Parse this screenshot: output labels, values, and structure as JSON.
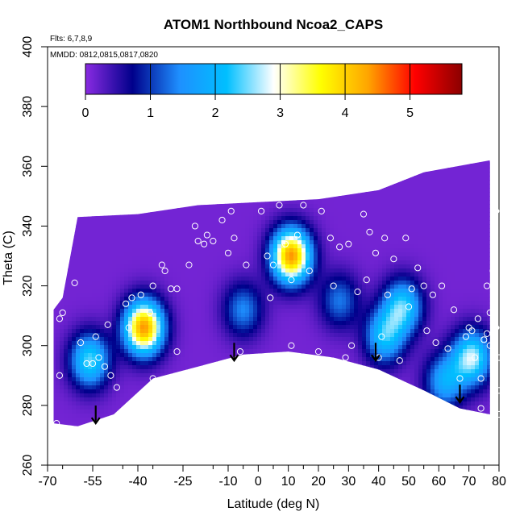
{
  "chart_data": {
    "type": "heatmap",
    "title": "ATOM1 Northbound Ncoa2_CAPS",
    "flights_label": "Flts: 6,7,8,9",
    "dates_label": "MMDD: 0812,0815,0817,0820",
    "xlabel": "Latitude (deg N)",
    "ylabel": "Theta (C)",
    "xlim": [
      -70,
      80
    ],
    "ylim": [
      260,
      400
    ],
    "x_ticks": [
      -70,
      -55,
      -40,
      -25,
      -10,
      0,
      10,
      20,
      30,
      40,
      50,
      60,
      70,
      80
    ],
    "y_ticks": [
      260,
      280,
      300,
      320,
      340,
      360,
      380,
      400
    ],
    "colorbar": {
      "range": [
        0,
        5.8
      ],
      "ticks": [
        0,
        1,
        2,
        3,
        4,
        5
      ],
      "colors": [
        "#8a2be2",
        "#00008b",
        "#1e90ff",
        "#00bfff",
        "#ffffff",
        "#ffff00",
        "#ffa500",
        "#ff0000",
        "#8b0000"
      ]
    },
    "hotspots": [
      {
        "lat": -38,
        "theta": 306,
        "value": 4.3
      },
      {
        "lat": 11,
        "theta": 330,
        "value": 4.3
      },
      {
        "lat": -56,
        "theta": 295,
        "value": 2.3
      },
      {
        "lat": 71,
        "theta": 296,
        "value": 2.6
      },
      {
        "lat": 42,
        "theta": 303,
        "value": 2.0
      },
      {
        "lat": 62,
        "theta": 288,
        "value": 1.7
      },
      {
        "lat": 48,
        "theta": 313,
        "value": 2.2
      },
      {
        "lat": -5,
        "theta": 312,
        "value": 1.3
      },
      {
        "lat": 27,
        "theta": 315,
        "value": 1.2
      }
    ],
    "coverage": {
      "top": [
        [
          -68,
          312
        ],
        [
          -65,
          316
        ],
        [
          -60,
          343
        ],
        [
          -40,
          344
        ],
        [
          -20,
          347
        ],
        [
          0,
          348
        ],
        [
          20,
          349
        ],
        [
          40,
          352
        ],
        [
          55,
          358
        ],
        [
          77,
          362
        ]
      ],
      "bottom": [
        [
          -68,
          274
        ],
        [
          -60,
          273
        ],
        [
          -48,
          277
        ],
        [
          -35,
          289
        ],
        [
          -20,
          293
        ],
        [
          -5,
          297
        ],
        [
          10,
          298
        ],
        [
          25,
          296
        ],
        [
          40,
          292
        ],
        [
          55,
          285
        ],
        [
          67,
          279
        ],
        [
          77,
          277
        ]
      ]
    },
    "arrows": [
      {
        "lat": -54,
        "theta": 274
      },
      {
        "lat": -8,
        "theta": 295
      },
      {
        "lat": 39,
        "theta": 295
      },
      {
        "lat": 67,
        "theta": 281
      }
    ],
    "samples": [
      [
        -66,
        309
      ],
      [
        -65,
        311
      ],
      [
        -66,
        290
      ],
      [
        -67,
        274
      ],
      [
        -61,
        321
      ],
      [
        -59,
        301
      ],
      [
        -57,
        294
      ],
      [
        -55,
        294
      ],
      [
        -53,
        296
      ],
      [
        -54,
        303
      ],
      [
        -51,
        293
      ],
      [
        -50,
        307
      ],
      [
        -49,
        290
      ],
      [
        -46,
        276
      ],
      [
        -47,
        286
      ],
      [
        -44,
        314
      ],
      [
        -43,
        306
      ],
      [
        -42,
        316
      ],
      [
        -39,
        317
      ],
      [
        -36,
        311
      ],
      [
        -35,
        289
      ],
      [
        -35,
        320
      ],
      [
        -32,
        327
      ],
      [
        -31,
        325
      ],
      [
        -29,
        319
      ],
      [
        -27,
        319
      ],
      [
        -27,
        298
      ],
      [
        -23,
        327
      ],
      [
        -21,
        340
      ],
      [
        -20,
        335
      ],
      [
        -18,
        334
      ],
      [
        -17,
        337
      ],
      [
        -15,
        335
      ],
      [
        -12,
        342
      ],
      [
        -10,
        331
      ],
      [
        -9,
        345
      ],
      [
        -8,
        336
      ],
      [
        -6,
        298
      ],
      [
        -4,
        327
      ],
      [
        -2,
        296
      ],
      [
        1,
        345
      ],
      [
        3,
        330
      ],
      [
        4,
        316
      ],
      [
        5,
        327
      ],
      [
        7,
        347
      ],
      [
        9,
        334
      ],
      [
        11,
        322
      ],
      [
        11,
        300
      ],
      [
        13,
        337
      ],
      [
        15,
        347
      ],
      [
        17,
        325
      ],
      [
        20,
        298
      ],
      [
        21,
        345
      ],
      [
        24,
        336
      ],
      [
        25,
        320
      ],
      [
        27,
        333
      ],
      [
        29,
        296
      ],
      [
        30,
        334
      ],
      [
        31,
        300
      ],
      [
        33,
        318
      ],
      [
        35,
        344
      ],
      [
        36,
        322
      ],
      [
        37,
        338
      ],
      [
        39,
        331
      ],
      [
        40,
        296
      ],
      [
        41,
        303
      ],
      [
        42,
        336
      ],
      [
        43,
        317
      ],
      [
        45,
        329
      ],
      [
        47,
        295
      ],
      [
        49,
        336
      ],
      [
        50,
        313
      ],
      [
        51,
        319
      ],
      [
        53,
        326
      ],
      [
        55,
        320
      ],
      [
        56,
        305
      ],
      [
        58,
        317
      ],
      [
        59,
        301
      ],
      [
        61,
        320
      ],
      [
        63,
        299
      ],
      [
        65,
        312
      ],
      [
        67,
        289
      ],
      [
        69,
        303
      ],
      [
        70,
        306
      ],
      [
        71,
        305
      ],
      [
        72,
        296
      ],
      [
        73,
        309
      ],
      [
        74,
        279
      ],
      [
        74,
        289
      ],
      [
        75,
        302
      ],
      [
        76,
        304
      ],
      [
        76,
        320
      ],
      [
        77,
        300
      ],
      [
        77,
        311
      ],
      [
        78,
        325
      ],
      [
        79,
        306
      ],
      [
        80,
        277
      ],
      [
        80,
        285
      ],
      [
        80,
        296
      ],
      [
        79,
        345
      ],
      [
        78,
        362
      ]
    ]
  }
}
